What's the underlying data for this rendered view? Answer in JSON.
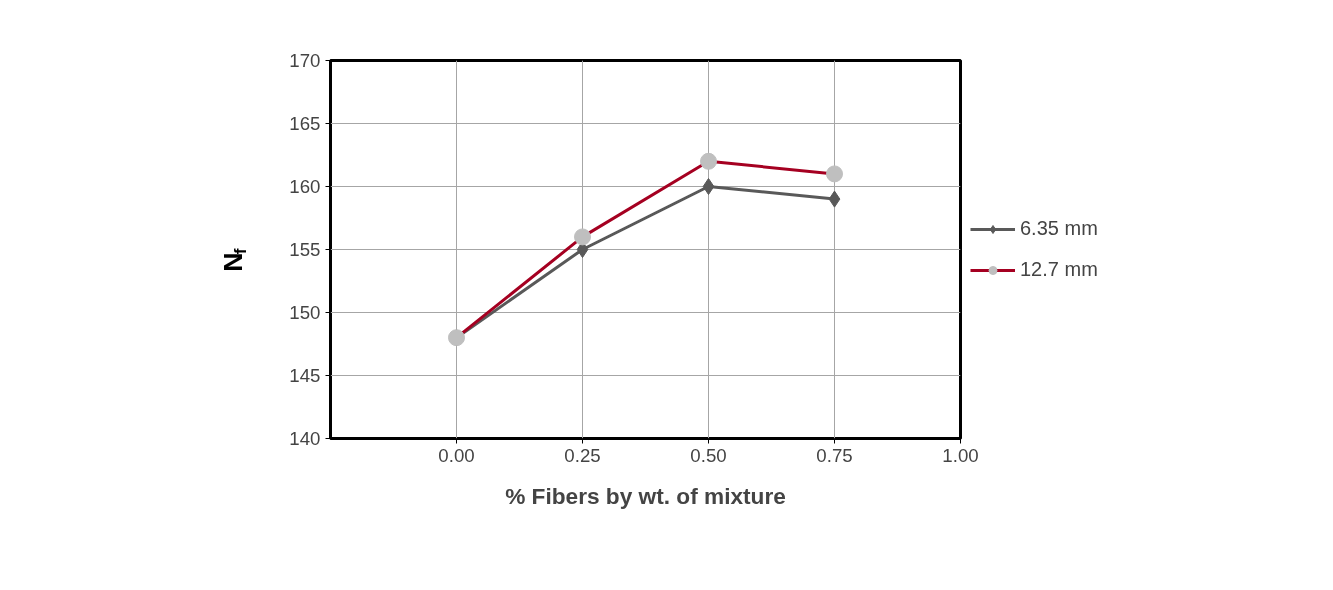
{
  "chart_data": {
    "type": "line",
    "xlabel": "% Fibers by wt. of mixture",
    "ylabel": "N$_{f}$",
    "x": [
      0,
      0.25,
      0.5,
      0.75
    ],
    "xlim": [
      -0.25,
      1.0
    ],
    "xticks": [
      {
        "value": 0,
        "label": "0.00"
      },
      {
        "value": 0.25,
        "label": "0.25"
      },
      {
        "value": 0.5,
        "label": "0.50"
      },
      {
        "value": 0.75,
        "label": "0.75"
      },
      {
        "value": 1.0,
        "label": "1.00"
      }
    ],
    "ylim": [
      140,
      170
    ],
    "yticks": [
      140,
      145,
      150,
      155,
      160,
      165,
      170
    ],
    "grid": true,
    "legend": "right",
    "series": [
      {
        "name": "6.35 mm",
        "color": "#595959",
        "marker": "diamond",
        "colors": [
          "#595959",
          "#595959",
          "#595959",
          "#595959"
        ],
        "values": [
          148,
          155,
          160,
          159
        ]
      },
      {
        "name": "12.7 mm",
        "color": "#a50021",
        "marker": "circle",
        "colors": [
          "#bfbfbf",
          "#bfbfbf",
          "#bfbfbf",
          "#bfbfbf"
        ],
        "values": [
          148,
          156,
          162,
          161
        ]
      }
    ]
  }
}
